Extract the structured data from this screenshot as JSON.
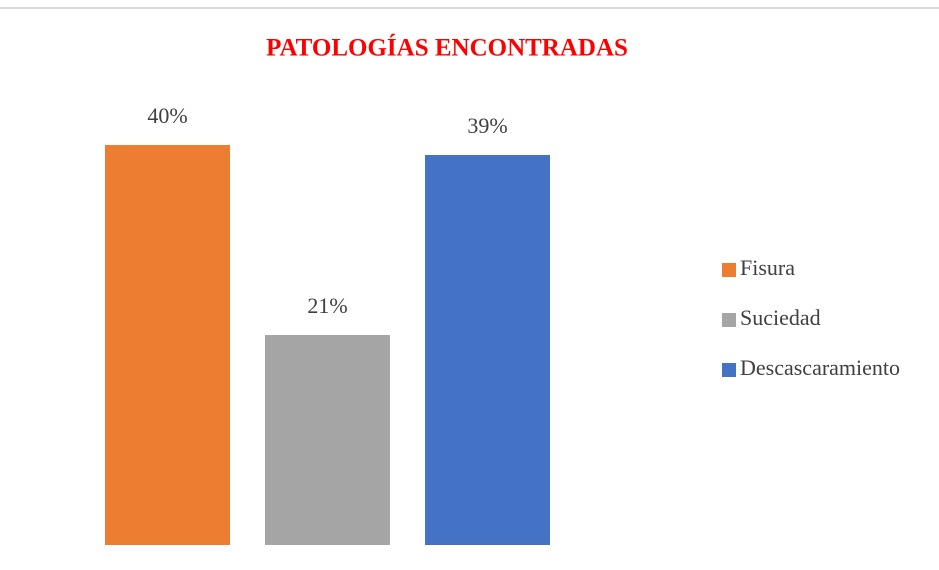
{
  "chart_data": {
    "type": "bar",
    "title": "PATOLOGÍAS ENCONTRADAS",
    "series": [
      {
        "name": "Fisura",
        "color": "#ed7d31",
        "values": [
          40
        ],
        "value_labels": [
          "40%"
        ]
      },
      {
        "name": "Suciedad",
        "color": "#a5a5a5",
        "values": [
          21
        ],
        "value_labels": [
          "21%"
        ]
      },
      {
        "name": "Descascaramiento",
        "color": "#4472c4",
        "values": [
          39
        ],
        "value_labels": [
          "39%"
        ]
      }
    ],
    "legend": "right"
  }
}
